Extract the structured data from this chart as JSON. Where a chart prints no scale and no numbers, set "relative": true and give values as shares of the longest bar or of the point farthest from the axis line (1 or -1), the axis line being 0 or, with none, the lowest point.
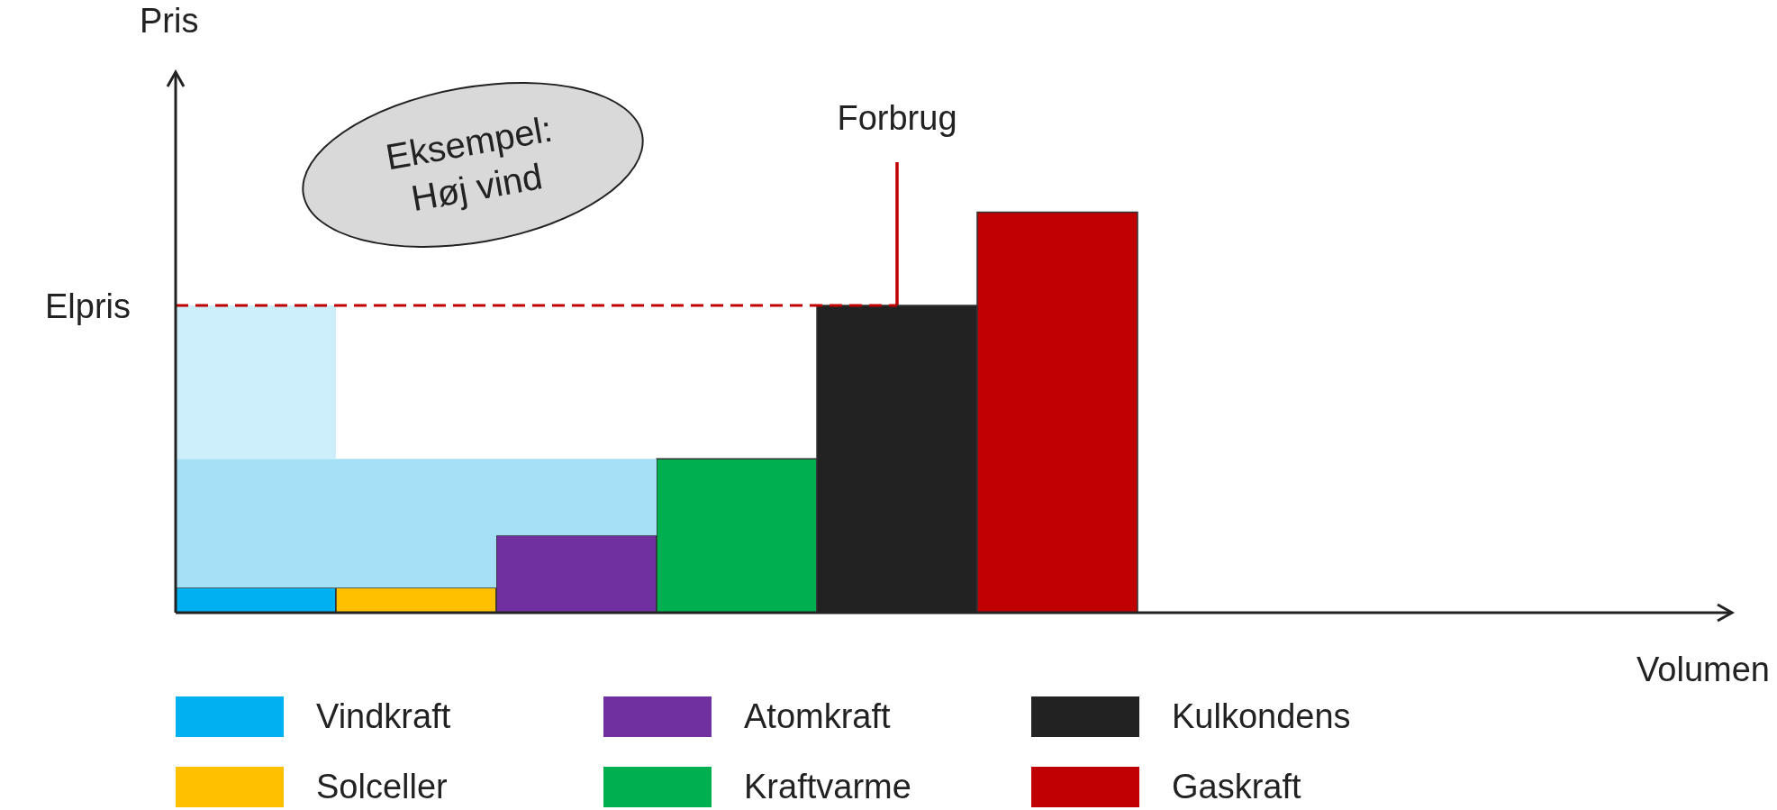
{
  "chart_data": {
    "type": "bar",
    "relative": true,
    "stacked": true,
    "categories": [
      null,
      null,
      null,
      null,
      null,
      null
    ],
    "series": [
      {
        "name": "Vindkraft",
        "color": "#00b0f0",
        "values": [
          0.0625,
          null,
          null,
          null,
          null,
          null
        ]
      },
      {
        "name": "Solceller",
        "color": "#ffc000",
        "values": [
          null,
          0.0625,
          null,
          null,
          null,
          null
        ]
      },
      {
        "name": "Atomkraft",
        "color": "#7030a0",
        "values": [
          null,
          null,
          0.193,
          null,
          null,
          null
        ]
      },
      {
        "name": "Kraftvarme",
        "color": "#00b050",
        "values": [
          null,
          null,
          null,
          0.384,
          null,
          null
        ]
      },
      {
        "name": "Kulkondens",
        "color": "#222222",
        "values": [
          null,
          null,
          null,
          null,
          0.767,
          null
        ]
      },
      {
        "name": "Gaskraft",
        "color": "#c00000",
        "values": [
          null,
          null,
          null,
          null,
          null,
          1
        ]
      },
      {
        "color": "#a6e0f7",
        "values": [
          0.3215,
          0.3215,
          0.191,
          null,
          null,
          null
        ]
      },
      {
        "color": "#cdeefb",
        "values": [
          0.383,
          null,
          null,
          null,
          null,
          null
        ]
      }
    ],
    "ref_lines": [
      {
        "axis": "y",
        "value": 0.767,
        "label": "Elpris",
        "color": "#c00000",
        "line_style": "dashed"
      }
    ],
    "annotations": [
      "Eksempel: Høj vind",
      "Forbrug",
      "Pris",
      "Volumen"
    ],
    "legend": "bottom"
  }
}
